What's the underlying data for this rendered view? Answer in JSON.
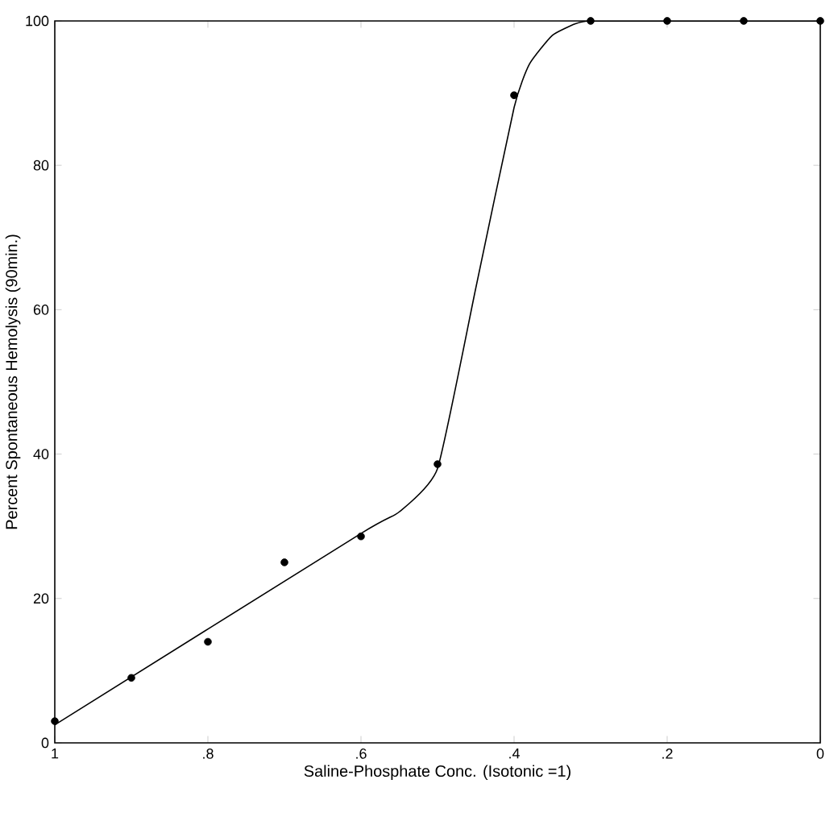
{
  "chart_data": {
    "type": "scatter",
    "xlabel": "Saline-Phosphate Conc. (Isotonic =1)",
    "ylabel": "Percent Spontaneous Hemolysis (90min.)",
    "xlim": [
      1,
      0
    ],
    "ylim": [
      0,
      100
    ],
    "xticks": [
      1,
      {
        "value": 0.8,
        "label": ".8"
      },
      {
        "value": 0.6,
        "label": ".6"
      },
      {
        "value": 0.4,
        "label": ".4"
      },
      {
        "value": 0.2,
        "label": ".2"
      },
      0
    ],
    "yticks": [
      0,
      20,
      40,
      60,
      80,
      100
    ],
    "grid": false,
    "legend": false,
    "marker": "circle",
    "series": [
      {
        "type": "line",
        "color": "#000000",
        "marker": "none",
        "x": [
          1,
          0.6,
          0.55,
          0.5,
          0.45,
          0.4,
          0.38,
          0.35,
          0.32,
          0.3,
          0.2,
          0.1,
          0
        ],
        "values": [
          2.5,
          29,
          32,
          38,
          63,
          88,
          94,
          98,
          99.6,
          100,
          100,
          100,
          100
        ]
      },
      {
        "color": "#000000",
        "x": [
          1,
          0.9,
          0.8,
          0.7,
          0.6,
          0.5,
          0.4,
          0.3,
          0.2,
          0.1,
          0
        ],
        "values": [
          3,
          9,
          14,
          25,
          28.6,
          38.6,
          89.7,
          100,
          100,
          100,
          100
        ]
      }
    ]
  }
}
